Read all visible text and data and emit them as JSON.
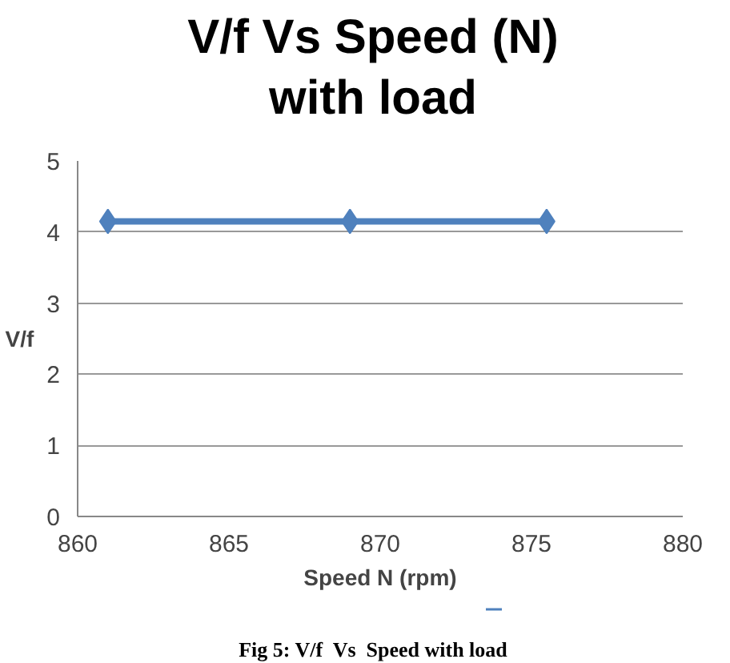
{
  "chart_data": {
    "type": "line",
    "title": "V/f  Vs Speed (N)\nwith load",
    "xlabel": "Speed N (rpm)",
    "ylabel": "V/f",
    "x": [
      861,
      869,
      875.5
    ],
    "series": [
      {
        "color": "#4f81bd",
        "values": [
          4.15,
          4.15,
          4.15
        ]
      }
    ],
    "xlim": [
      860,
      880
    ],
    "xticks": [
      860,
      865,
      870,
      875,
      880
    ],
    "ylim": [
      0,
      5
    ],
    "yticks": [
      0,
      1,
      2,
      3,
      4,
      5
    ],
    "grid": "y",
    "marker": "diamond",
    "line_style": "solid",
    "annotations": [
      "Fig 5: V/f  Vs  Speed with load"
    ]
  }
}
